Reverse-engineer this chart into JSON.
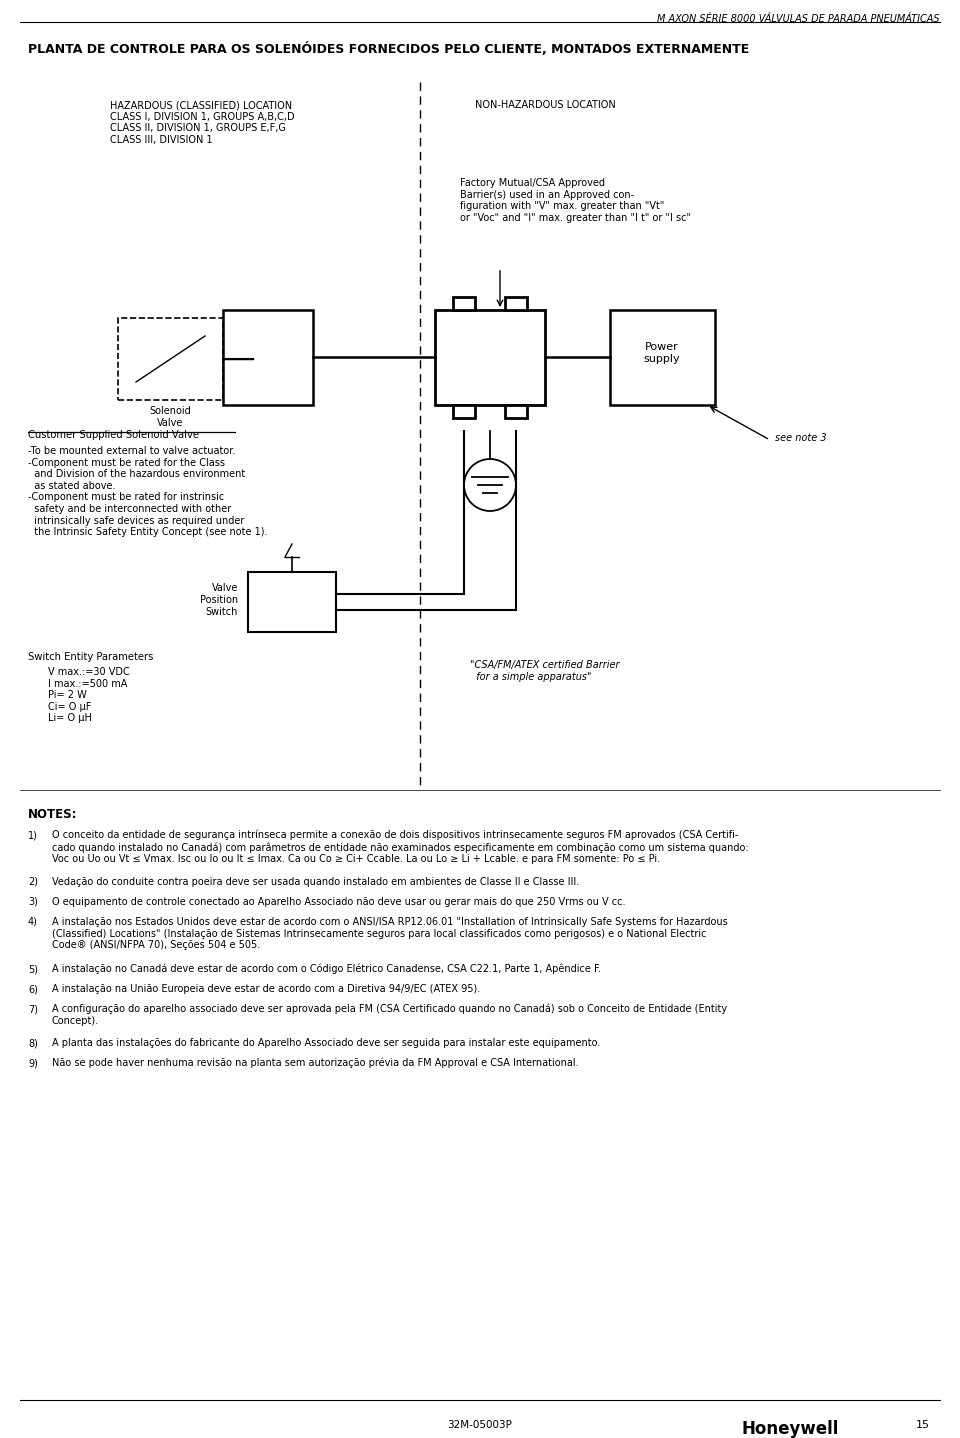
{
  "page_title": "M AXON SÉRIE 8000 VÁLVULAS DE PARADA PNEUMÁTICAS",
  "main_title": "PLANTA DE CONTROLE PARA OS SOLENÓIDES FORNECIDOS PELO CLIENTE, MONTADOS EXTERNAMENTE",
  "hazardous_label": "HAZARDOUS (CLASSIFIED) LOCATION\nCLASS I, DIVISION 1, GROUPS A,B,C,D\nCLASS II, DIVISION 1, GROUPS E,F,G\nCLASS III, DIVISION 1",
  "non_hazardous_label": "NON-HAZARDOUS LOCATION",
  "barrier_text": "Factory Mutual/CSA Approved\nBarrier(s) used in an Approved con-\nfiguration with \"V\" max. greater than \"Vt\"\nor \"Voc\" and \"I\" max. greater than \"I t\" or \"I sc\"",
  "power_supply_label": "Power\nsupply",
  "see_note_3": "see note 3",
  "solenoid_valve_label": "Solenoid\nValve",
  "customer_supplied_label": "Customer Supplied Solenoid Valve",
  "customer_supplied_notes": "-To be mounted external to valve actuator.\n-Component must be rated for the Class\n  and Division of the hazardous environment\n  as stated above.\n-Component must be rated for instrinsic\n  safety and be interconnected with other\n  intrinsically safe devices as required under\n  the Intrinsic Safety Entity Concept (see note 1).",
  "valve_position_label": "Valve\nPosition\nSwitch",
  "switch_entity_label": "Switch Entity Parameters",
  "switch_entity_params": "V max.:=30 VDC\nI max.:=500 mA\nPi= 2 W\nCi= O µF\nLi= O µH",
  "csa_barrier_label": "\"CSA/FM/ATEX certified Barrier\n  for a simple apparatus\"",
  "notes_title": "NOTES:",
  "notes": [
    "O conceito da entidade de segurança intrínseca permite a conexão de dois dispositivos intrinsecamente seguros FM aprovados (CSA Certifi-\ncado quando instalado no Canadá) com parâmetros de entidade não examinados especificamente em combinação como um sistema quando:\nVoc ou Uo ou Vt ≤ Vmax. Isc ou Io ou It ≤ Imax. Ca ou Co ≥ Ci+ Ccable. La ou Lo ≥ Li + Lcable. e para FM somente: Po ≤ Pi.",
    "Vedação do conduite contra poeira deve ser usada quando instalado em ambientes de Classe II e Classe III.",
    "O equipamento de controle conectado ao Aparelho Associado não deve usar ou gerar mais do que 250 Vrms ou V cc.",
    "A instalação nos Estados Unidos deve estar de acordo com o ANSI/ISA RP12.06.01 \"Installation of Intrinsically Safe Systems for Hazardous\n(Classified) Locations\" (Instalação de Sistemas Intrinsecamente seguros para local classificados como perigosos) e o National Electric\nCode® (ANSI/NFPA 70), Seções 504 e 505.",
    "A instalação no Canadá deve estar de acordo com o Código Elétrico Canadense, CSA C22.1, Parte 1, Apêndice F.",
    "A instalação na União Europeia deve estar de acordo com a Diretiva 94/9/EC (ATEX 95).",
    "A configuração do aparelho associado deve ser aprovada pela FM (CSA Certificado quando no Canadá) sob o Conceito de Entidade (Entity\nConcept).",
    "A planta das instalações do fabricante do Aparelho Associado deve ser seguida para instalar este equipamento.",
    "Não se pode haver nenhuma revisão na planta sem autorização prévia da FM Approval e CSA International."
  ],
  "footer_center": "32M-05003P",
  "footer_brand": "Honeywell",
  "footer_page": "15",
  "bg_color": "#ffffff"
}
